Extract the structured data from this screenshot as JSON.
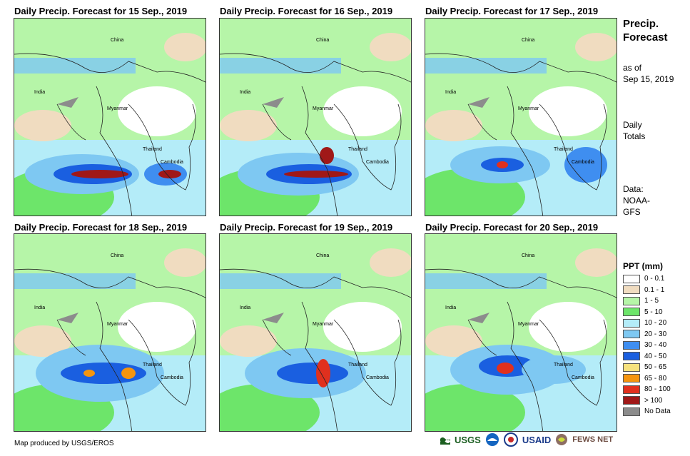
{
  "panels": [
    {
      "title": "Daily Precip. Forecast for 15 Sep., 2019"
    },
    {
      "title": "Daily Precip. Forecast for 16 Sep., 2019"
    },
    {
      "title": "Daily Precip. Forecast for 17 Sep., 2019"
    },
    {
      "title": "Daily Precip. Forecast for 18 Sep., 2019"
    },
    {
      "title": "Daily Precip. Forecast for 19 Sep., 2019"
    },
    {
      "title": "Daily Precip. Forecast for 20 Sep., 2019"
    }
  ],
  "map_labels": {
    "china": "China",
    "india": "India",
    "myanmar": "Myanmar",
    "thailand": "Thailand",
    "cambodia": "Cambodia"
  },
  "side": {
    "title_line1": "Precip.",
    "title_line2": "Forecast",
    "asof_line1": "as of",
    "asof_line2": "Sep 15, 2019",
    "daily_line1": "Daily",
    "daily_line2": "Totals",
    "data_line1": "Data:",
    "data_line2": "NOAA-",
    "data_line3": "GFS"
  },
  "legend": {
    "title": "PPT (mm)",
    "items": [
      {
        "label": "0 - 0.1",
        "color": "#ffffff"
      },
      {
        "label": "0.1 - 1",
        "color": "#f0dcc0"
      },
      {
        "label": "1 - 5",
        "color": "#b6f5a8"
      },
      {
        "label": "5 - 10",
        "color": "#6de56a"
      },
      {
        "label": "10 - 20",
        "color": "#b4ecf8"
      },
      {
        "label": "20 - 30",
        "color": "#7ec8f2"
      },
      {
        "label": "30 - 40",
        "color": "#3f8ef0"
      },
      {
        "label": "40 - 50",
        "color": "#1a5fe0"
      },
      {
        "label": "50 - 65",
        "color": "#f7e27e"
      },
      {
        "label": "65 - 80",
        "color": "#f5950f"
      },
      {
        "label": "80 - 100",
        "color": "#e0301e"
      },
      {
        "label": "> 100",
        "color": "#a01818"
      },
      {
        "label": "No Data",
        "color": "#8c8c8c"
      }
    ]
  },
  "credit": "Map produced by USGS/EROS",
  "logos": {
    "usgs": "USGS",
    "usaid": "USAID",
    "fewsnet": "FEWS NET"
  }
}
